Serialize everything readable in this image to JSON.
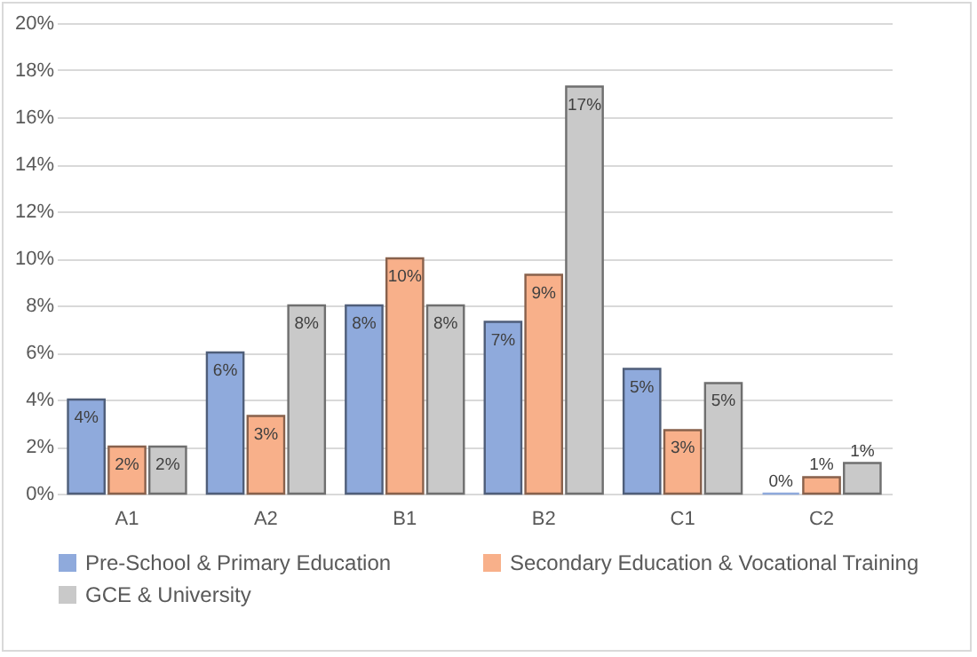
{
  "chart_data": {
    "type": "bar",
    "categories": [
      "A1",
      "A2",
      "B1",
      "B2",
      "C1",
      "C2"
    ],
    "series": [
      {
        "name": "Pre-School & Primary Education",
        "color": "#8faadc",
        "values": [
          4,
          6,
          8,
          7.3,
          5.3,
          0
        ],
        "value_labels": [
          "4%",
          "6%",
          "8%",
          "7%",
          "5%",
          "0%"
        ]
      },
      {
        "name": "Secondary Education & Vocational Training",
        "color": "#f8b08a",
        "values": [
          2,
          3.3,
          10,
          9.3,
          2.7,
          0.7
        ],
        "value_labels": [
          "2%",
          "3%",
          "10%",
          "9%",
          "3%",
          "1%"
        ]
      },
      {
        "name": "GCE & University",
        "color": "#c9c9c9",
        "values": [
          2,
          8,
          8,
          17.3,
          4.7,
          1.3
        ],
        "value_labels": [
          "2%",
          "8%",
          "8%",
          "17%",
          "5%",
          "1%"
        ]
      }
    ],
    "ylim": [
      0,
      20
    ],
    "yticks": [
      {
        "value": 0,
        "label": "0%"
      },
      {
        "value": 2,
        "label": "2%"
      },
      {
        "value": 4,
        "label": "4%"
      },
      {
        "value": 6,
        "label": "6%"
      },
      {
        "value": 8,
        "label": "8%"
      },
      {
        "value": 10,
        "label": "10%"
      },
      {
        "value": 12,
        "label": "12%"
      },
      {
        "value": 14,
        "label": "14%"
      },
      {
        "value": 16,
        "label": "16%"
      },
      {
        "value": 18,
        "label": "18%"
      },
      {
        "value": 20,
        "label": "20%"
      }
    ],
    "grid": "y",
    "legend": "bottom"
  }
}
